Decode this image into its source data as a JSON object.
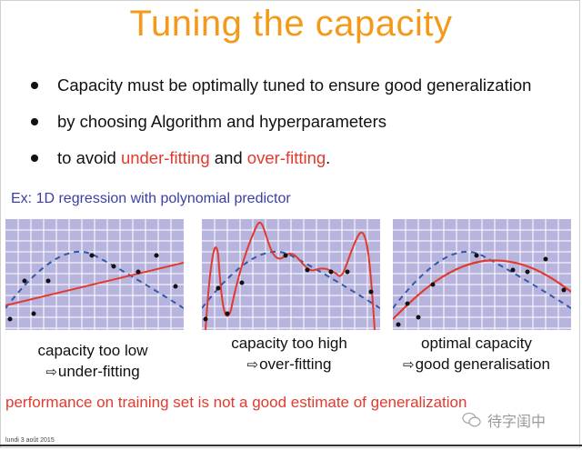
{
  "slide": {
    "title": "Tuning the capacity",
    "bullets": [
      {
        "parts": [
          {
            "text": "Capacity must be optimally tuned to ensure good generalization",
            "highlight": false
          }
        ]
      },
      {
        "parts": [
          {
            "text": "by choosing Algorithm and hyperparameters",
            "highlight": false
          }
        ]
      },
      {
        "parts": [
          {
            "text": "to avoid ",
            "highlight": false
          },
          {
            "text": "under-fitting",
            "highlight": true
          },
          {
            "text": " and ",
            "highlight": false
          },
          {
            "text": "over-fitting",
            "highlight": true
          },
          {
            "text": ".",
            "highlight": false
          }
        ]
      }
    ],
    "example_label": "Ex: 1D regression with polynomial predictor",
    "panels": [
      {
        "caption_line1": "capacity too low",
        "caption_line2": "under-fitting"
      },
      {
        "caption_line1": "capacity too high",
        "caption_line2": "over-fitting"
      },
      {
        "caption_line1": "optimal capacity",
        "caption_line2": "good generalisation"
      }
    ],
    "footer_message": "performance on training set is not a good estimate of generalization",
    "date": "lundi 3 août 2015",
    "watermark": "待字闺中",
    "colors": {
      "title": "#f39a1a",
      "highlight": "#e23a2e",
      "example": "#3b3ea6",
      "plot_bg": "#b7b4dd",
      "fit_curve": "#e23a2e",
      "true_curve": "#3657a8"
    },
    "icons": [
      "arrow-right-icon",
      "wechat-icon"
    ]
  }
}
